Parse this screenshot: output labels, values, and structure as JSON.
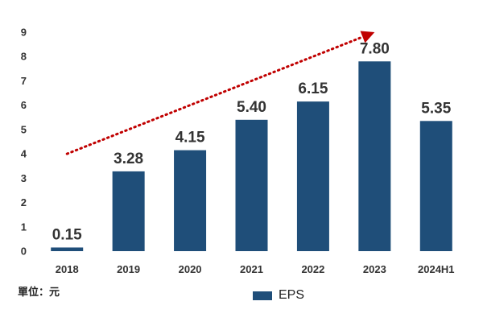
{
  "chart_data": {
    "type": "bar",
    "categories": [
      "2018",
      "2019",
      "2020",
      "2021",
      "2022",
      "2023",
      "2024H1"
    ],
    "series": [
      {
        "name": "EPS",
        "values": [
          0.15,
          3.28,
          4.15,
          5.4,
          6.15,
          7.8,
          5.35
        ],
        "data_labels": [
          "0.15",
          "3.28",
          "4.15",
          "5.40",
          "6.15",
          "7.80",
          "5.35"
        ]
      }
    ],
    "yticks": [
      "0",
      "1",
      "2",
      "3",
      "4",
      "5",
      "6",
      "7",
      "8",
      "9"
    ],
    "ylim": [
      0,
      9
    ],
    "grid": false,
    "legend_position": "bottom",
    "annotation": {
      "type": "trend-arrow",
      "from": {
        "category": "2018",
        "value": 4.0
      },
      "to": {
        "category": "2023",
        "value": 9.0
      },
      "style": "dotted",
      "color": "#c00000"
    },
    "unit_note": "單位：元",
    "colors": {
      "bar": "#1f4e79",
      "arrow": "#c00000",
      "text": "#333333"
    }
  }
}
